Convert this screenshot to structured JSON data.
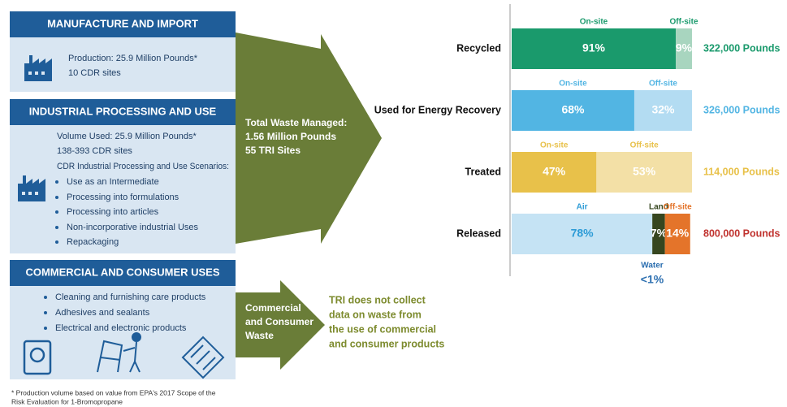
{
  "sections": [
    {
      "title": "MANUFACTURE AND IMPORT",
      "lines": [
        "Production: 25.9 Million Pounds*",
        "10 CDR sites"
      ]
    },
    {
      "title": "INDUSTRIAL PROCESSING AND USE",
      "lines": [
        "Volume Used: 25.9 Million Pounds*",
        "138-393 CDR sites",
        "CDR Industrial Processing and Use Scenarios:"
      ],
      "bullets": [
        "Use as an Intermediate",
        "Processing into formulations",
        "Processing into articles",
        "Non-incorporative industrial Uses",
        "Repackaging"
      ]
    },
    {
      "title": "COMMERCIAL AND CONSUMER USES",
      "bullets": [
        "Cleaning and furnishing care products",
        "Adhesives and sealants",
        "Electrical and electronic products"
      ]
    }
  ],
  "footnote": [
    "* Production volume based on value from EPA's 2017 Scope of the",
    "Risk Evaluation for 1-Bromopropane"
  ],
  "arrows": [
    {
      "lines": [
        "Total Waste Managed:",
        "1.56 Million Pounds",
        "55 TRI Sites"
      ]
    },
    {
      "lines": [
        "Commercial",
        "and Consumer",
        "Waste"
      ]
    }
  ],
  "note": [
    "TRI does not collect",
    "data on waste from",
    "the use of commercial",
    "and consumer products"
  ],
  "waste": {
    "rows": [
      {
        "name": "Recycled",
        "total": "322,000 Pounds",
        "color": "#1a9a6c",
        "segments": [
          {
            "name": "On-site",
            "value": 91,
            "label": "91%",
            "color": "#1a9a6c",
            "label_color": "#1a9a6c",
            "text_color": "#ffffff"
          },
          {
            "name": "Off-site",
            "value": 9,
            "label": "9%",
            "color": "#a8d5bf",
            "label_color": "#1a9a6c",
            "text_color": "#ffffff"
          }
        ]
      },
      {
        "name": "Used for Energy Recovery",
        "total": "326,000 Pounds",
        "color": "#52b5e3",
        "segments": [
          {
            "name": "On-site",
            "value": 68,
            "label": "68%",
            "color": "#52b5e3",
            "label_color": "#52b5e3",
            "text_color": "#ffffff"
          },
          {
            "name": "Off-site",
            "value": 32,
            "label": "32%",
            "color": "#b3dcf2",
            "label_color": "#52b5e3",
            "text_color": "#ffffff"
          }
        ]
      },
      {
        "name": "Treated",
        "total": "114,000 Pounds",
        "color": "#e8c14a",
        "segments": [
          {
            "name": "On-site",
            "value": 47,
            "label": "47%",
            "color": "#e8c14a",
            "label_color": "#e8c14a",
            "text_color": "#ffffff"
          },
          {
            "name": "Off-site",
            "value": 53,
            "label": "53%",
            "color": "#f3e0a6",
            "label_color": "#e8c14a",
            "text_color": "#ffffff"
          }
        ]
      },
      {
        "name": "Released",
        "total": "800,000 Pounds",
        "color": "#c0322e",
        "segments": [
          {
            "name": "Air",
            "value": 78,
            "label": "78%",
            "color": "#c5e3f4",
            "label_color": "#2c9bd6",
            "text_color": "#2c9bd6"
          },
          {
            "name": "Land",
            "value": 7,
            "label": "7%",
            "color": "#36461f",
            "label_color": "#36461f",
            "text_color": "#ffffff"
          },
          {
            "name": "Off-site",
            "value": 14,
            "label": "14%",
            "color": "#e4742a",
            "label_color": "#e4742a",
            "text_color": "#ffffff"
          }
        ]
      }
    ],
    "water": {
      "name": "Water",
      "label": "<1%"
    }
  }
}
